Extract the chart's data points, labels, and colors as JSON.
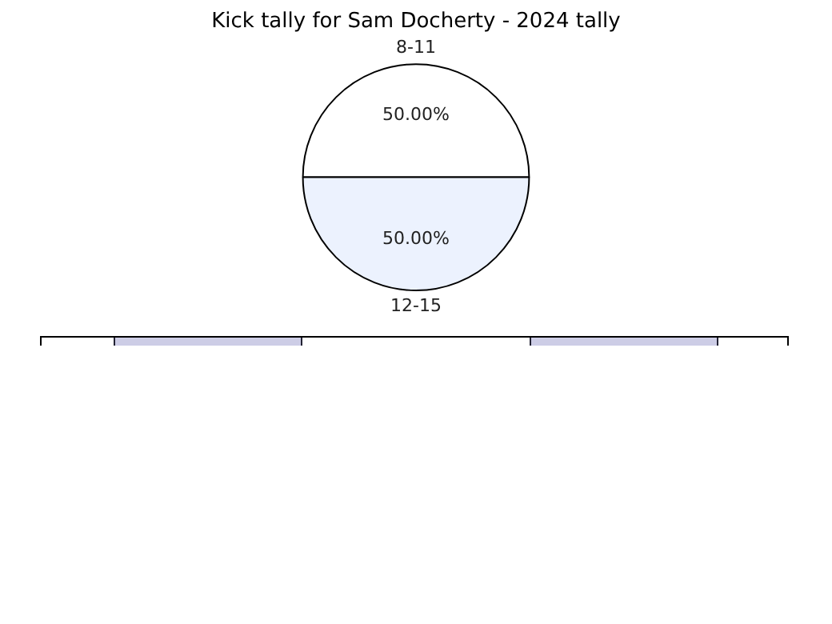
{
  "chart_data": {
    "type": "pie",
    "title": "Kick tally for Sam Docherty - 2024 tally",
    "categories": [
      "8-11",
      "12-15"
    ],
    "values": [
      50,
      50
    ],
    "colors": [
      "#ffffff",
      "#ecf2fe"
    ],
    "value_labels": [
      "50.00%",
      "50.00%"
    ],
    "legend": false
  }
}
